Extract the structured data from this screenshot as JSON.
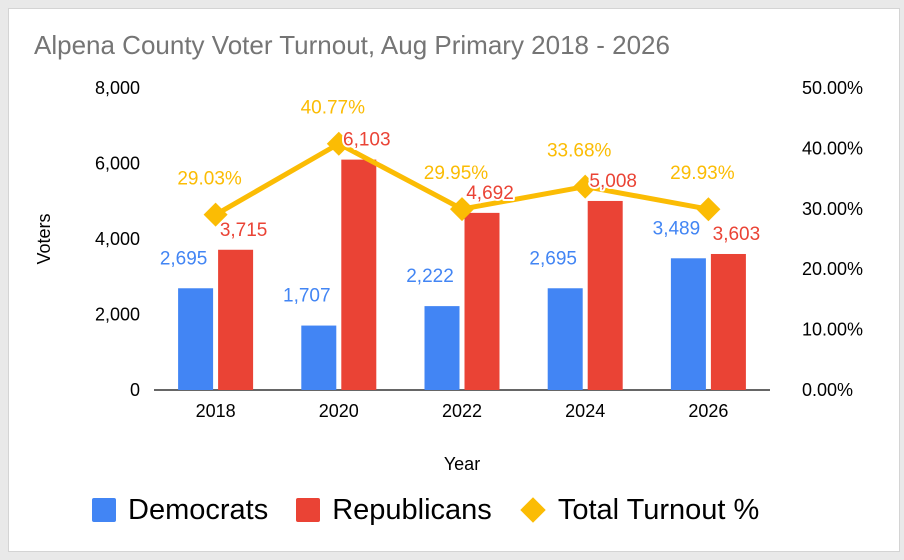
{
  "colors": {
    "democrats": "#4285f4",
    "republicans": "#ea4335",
    "turnout": "#fbbc04"
  },
  "legend": {
    "democrats": "Democrats",
    "republicans": "Republicans",
    "turnout": "Total Turnout %"
  },
  "chart_data": {
    "type": "bar",
    "title": "Alpena County Voter Turnout, Aug Primary 2018 - 2026",
    "xlabel": "Year",
    "ylabel": "Voters",
    "categories": [
      "2018",
      "2020",
      "2022",
      "2024",
      "2026"
    ],
    "ylim": [
      0,
      8000
    ],
    "yticks": [
      "8,000",
      "6,000",
      "4,000",
      "2,000",
      "0"
    ],
    "y2lim": [
      0,
      50
    ],
    "y2ticks": [
      "50.00%",
      "40.00%",
      "30.00%",
      "20.00%",
      "10.00%",
      "0.00%"
    ],
    "series": [
      {
        "name": "Democrats",
        "type": "bar",
        "axis": "left",
        "values": [
          2695,
          1707,
          2222,
          2695,
          3489
        ],
        "labels": [
          "2,695",
          "1,707",
          "2,222",
          "2,695",
          "3,489"
        ]
      },
      {
        "name": "Republicans",
        "type": "bar",
        "axis": "left",
        "values": [
          3715,
          6103,
          4692,
          5008,
          3603
        ],
        "labels": [
          "3,715",
          "6,103",
          "4,692",
          "5,008",
          "3,603"
        ]
      },
      {
        "name": "Total Turnout %",
        "type": "line",
        "axis": "right",
        "values": [
          29.03,
          40.77,
          29.95,
          33.68,
          29.93
        ],
        "labels": [
          "29.03%",
          "40.77%",
          "29.95%",
          "33.68%",
          "29.93%"
        ]
      }
    ],
    "legend_position": "bottom",
    "grid": false
  }
}
